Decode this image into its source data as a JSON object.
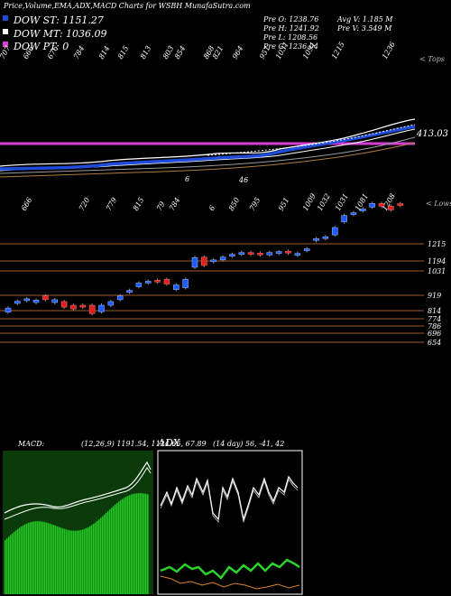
{
  "header": {
    "title": "Price,Volume,EMA,ADX,MACD Charts for WSBH MunafaSutra.com",
    "legend": [
      {
        "label": "DOW ST: 1151.27",
        "color": "#1e4bd8"
      },
      {
        "label": "DOW MT: 1036.09",
        "color": "#ffffff"
      },
      {
        "label": "DOW PT: 0",
        "color": "#d83cd8"
      }
    ],
    "ohlc": [
      "Pre  O: 1238.76",
      "Pre  H: 1241.92",
      "Pre  L: 1208.56",
      "Pre  C: 1236.04"
    ],
    "volume": [
      "Avg V: 1.185 M",
      "Pre  V: 3.549 M"
    ]
  },
  "ema_panel": {
    "corner_label": "< Tops",
    "top_numbers": [
      "707",
      "666",
      "676",
      "784",
      "814",
      "815",
      "813",
      "803",
      "854",
      "868",
      "821",
      "964",
      "951",
      "1031",
      "1091",
      "1215",
      "1236"
    ],
    "value_label": "413.03",
    "inner_labels": [
      "6",
      "46"
    ]
  },
  "price_panel": {
    "corner_label": "< Lows",
    "low_numbers": [
      "666",
      "720",
      "779",
      "815",
      "79",
      "784",
      "6",
      "850",
      "795",
      "951",
      "1009",
      "1032",
      "1031",
      "1081",
      "1208"
    ],
    "price_levels": [
      "1215",
      "1194",
      "1031",
      "919",
      "814",
      "774",
      "786",
      "696",
      "654"
    ]
  },
  "macd": {
    "label": "MACD:",
    "values": "(12,26,9) 1191.54, 1124.65, 67.89"
  },
  "adx": {
    "label": "ADX",
    "values": "(14 day) 56, -41, 42"
  },
  "chart_data": [
    {
      "type": "line",
      "title": "Price,Volume,EMA,ADX,MACD Charts for WSBH MunafaSutra.com",
      "series": [
        {
          "name": "DOW ST: 1151.27",
          "color": "#1e4bd8"
        },
        {
          "name": "DOW MT: 1036.09",
          "color": "#ffffff"
        },
        {
          "name": "DOW PT: 0",
          "color": "#d83cd8"
        }
      ]
    },
    {
      "type": "candlestick",
      "candles": [
        {
          "o": 653,
          "c": 675,
          "up": true
        },
        {
          "o": 700,
          "c": 712,
          "up": true
        },
        {
          "o": 715,
          "c": 725,
          "up": true
        },
        {
          "o": 718,
          "c": 705,
          "up": true
        },
        {
          "o": 740,
          "c": 720,
          "up": false
        },
        {
          "o": 705,
          "c": 720,
          "up": true
        },
        {
          "o": 710,
          "c": 680,
          "up": false
        },
        {
          "o": 690,
          "c": 670,
          "up": false
        },
        {
          "o": 680,
          "c": 690,
          "up": false
        },
        {
          "o": 690,
          "c": 645,
          "up": false
        },
        {
          "o": 655,
          "c": 690,
          "up": true
        },
        {
          "o": 690,
          "c": 710,
          "up": true
        },
        {
          "o": 720,
          "c": 740,
          "up": true
        },
        {
          "o": 760,
          "c": 770,
          "up": true
        },
        {
          "o": 790,
          "c": 810,
          "up": true
        },
        {
          "o": 815,
          "c": 820,
          "up": true
        },
        {
          "o": 825,
          "c": 820,
          "up": false
        },
        {
          "o": 830,
          "c": 805,
          "up": false
        },
        {
          "o": 800,
          "c": 775,
          "up": true
        },
        {
          "o": 785,
          "c": 830,
          "up": true
        },
        {
          "o": 895,
          "c": 948,
          "up": true
        },
        {
          "o": 950,
          "c": 905,
          "up": false
        },
        {
          "o": 925,
          "c": 935,
          "up": true
        },
        {
          "o": 935,
          "c": 950,
          "up": true
        },
        {
          "o": 958,
          "c": 965,
          "up": true
        },
        {
          "o": 965,
          "c": 975,
          "up": true
        },
        {
          "o": 975,
          "c": 970,
          "up": false
        },
        {
          "o": 972,
          "c": 965,
          "up": false
        },
        {
          "o": 962,
          "c": 975,
          "up": true
        },
        {
          "o": 975,
          "c": 980,
          "up": true
        },
        {
          "o": 982,
          "c": 975,
          "up": false
        },
        {
          "o": 970,
          "c": 960,
          "up": true
        },
        {
          "o": 985,
          "c": 995,
          "up": true
        },
        {
          "o": 1040,
          "c": 1050,
          "up": true
        },
        {
          "o": 1050,
          "c": 1060,
          "up": true
        },
        {
          "o": 1070,
          "c": 1110,
          "up": true
        },
        {
          "o": 1140,
          "c": 1175,
          "up": true
        },
        {
          "o": 1180,
          "c": 1190,
          "up": true
        },
        {
          "o": 1200,
          "c": 1210,
          "up": true
        },
        {
          "o": 1220,
          "c": 1240,
          "up": true
        },
        {
          "o": 1240,
          "c": 1225,
          "up": false
        },
        {
          "o": 1225,
          "c": 1205,
          "up": false
        },
        {
          "o": 1238.76,
          "c": 1236.04,
          "up": false
        }
      ]
    }
  ]
}
